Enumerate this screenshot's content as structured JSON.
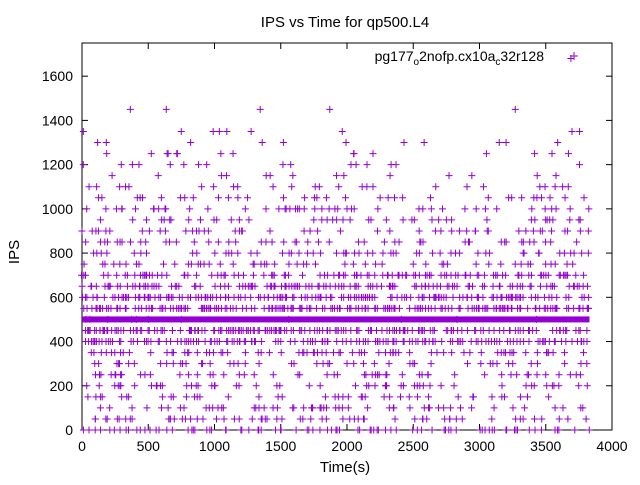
{
  "chart_data": {
    "type": "scatter",
    "title": "IPS vs Time for qp500.L4",
    "xlabel": "Time(s)",
    "ylabel": "IPS",
    "xlim": [
      0,
      4000
    ],
    "ylim": [
      0,
      1750
    ],
    "xticks": [
      0,
      500,
      1000,
      1500,
      2000,
      2500,
      3000,
      3500,
      4000
    ],
    "yticks": [
      0,
      200,
      400,
      600,
      800,
      1000,
      1200,
      1400,
      1600
    ],
    "grid": false,
    "legend_position": "top-right",
    "marker_color": "#9400d3",
    "series": [
      {
        "name": {
          "part1": "pg177",
          "sub1": "o",
          "part2": "2nofp.cx10a",
          "sub2": "c",
          "part3": "32r128"
        },
        "x_range": [
          0,
          3830
        ],
        "band_ips": [
          0,
          50,
          100,
          150,
          200,
          250,
          300,
          350,
          400,
          450,
          500,
          550,
          600,
          650,
          700,
          750,
          800,
          850,
          900,
          950,
          1000,
          1050,
          1100,
          1150,
          1200,
          1250,
          1300,
          1350,
          1450
        ],
        "baseline_ips": 500,
        "points": [
          [
            30,
            500
          ],
          [
            45,
            450
          ],
          [
            60,
            500
          ],
          [
            75,
            550
          ],
          [
            90,
            350
          ],
          [
            100,
            50
          ],
          [
            105,
            150
          ],
          [
            110,
            400
          ],
          [
            115,
            600
          ],
          [
            118,
            1300
          ],
          [
            125,
            1050
          ],
          [
            130,
            200
          ],
          [
            140,
            850
          ],
          [
            145,
            800
          ],
          [
            150,
            1050
          ],
          [
            165,
            450
          ],
          [
            180,
            50
          ],
          [
            195,
            500
          ],
          [
            205,
            650
          ],
          [
            210,
            900
          ],
          [
            220,
            250
          ],
          [
            230,
            400
          ],
          [
            240,
            750
          ],
          [
            250,
            250
          ],
          [
            260,
            1000
          ],
          [
            280,
            50
          ],
          [
            300,
            1000
          ],
          [
            330,
            50
          ],
          [
            365,
            1450
          ],
          [
            375,
            500
          ],
          [
            380,
            1200
          ],
          [
            395,
            300
          ],
          [
            410,
            500
          ],
          [
            430,
            1200
          ],
          [
            440,
            450
          ],
          [
            450,
            550
          ],
          [
            460,
            700
          ],
          [
            470,
            600
          ],
          [
            480,
            650
          ],
          [
            500,
            500
          ],
          [
            520,
            400
          ],
          [
            530,
            700
          ],
          [
            540,
            1000
          ],
          [
            560,
            650
          ],
          [
            575,
            400
          ],
          [
            590,
            900
          ],
          [
            600,
            100
          ],
          [
            610,
            550
          ],
          [
            620,
            950
          ],
          [
            640,
            700
          ],
          [
            650,
            1250
          ],
          [
            665,
            50
          ],
          [
            680,
            350
          ],
          [
            700,
            750
          ],
          [
            720,
            1250
          ],
          [
            735,
            600
          ],
          [
            750,
            500
          ],
          [
            770,
            100
          ],
          [
            790,
            200
          ],
          [
            810,
            450
          ],
          [
            820,
            1300
          ],
          [
            840,
            1050
          ],
          [
            850,
            650
          ],
          [
            870,
            50
          ],
          [
            880,
            1200
          ],
          [
            895,
            750
          ],
          [
            910,
            300
          ],
          [
            925,
            550
          ],
          [
            940,
            350
          ],
          [
            950,
            1000
          ],
          [
            970,
            600
          ],
          [
            990,
            1350
          ],
          [
            1000,
            200
          ],
          [
            1015,
            50
          ],
          [
            1030,
            1050
          ],
          [
            1050,
            700
          ],
          [
            1070,
            250
          ],
          [
            1085,
            600
          ],
          [
            1100,
            400
          ],
          [
            1120,
            550
          ],
          [
            1140,
            1250
          ],
          [
            1160,
            850
          ],
          [
            1175,
            1100
          ],
          [
            1190,
            450
          ],
          [
            1210,
            900
          ],
          [
            1225,
            250
          ],
          [
            1240,
            550
          ],
          [
            1260,
            950
          ],
          [
            1280,
            650
          ],
          [
            1300,
            100
          ],
          [
            1315,
            200
          ],
          [
            1330,
            350
          ],
          [
            1345,
            1450
          ],
          [
            1360,
            1300
          ],
          [
            1375,
            550
          ],
          [
            1390,
            1150
          ],
          [
            1405,
            600
          ],
          [
            1420,
            1150
          ],
          [
            1440,
            700
          ],
          [
            1460,
            450
          ],
          [
            1480,
            150
          ],
          [
            1500,
            400
          ],
          [
            1520,
            1300
          ],
          [
            1540,
            650
          ],
          [
            1560,
            500
          ],
          [
            1580,
            800
          ],
          [
            1600,
            300
          ],
          [
            1620,
            850
          ],
          [
            1640,
            1000
          ],
          [
            1660,
            550
          ],
          [
            1680,
            1050
          ],
          [
            1700,
            600
          ],
          [
            1720,
            450
          ],
          [
            1740,
            100
          ],
          [
            1760,
            1100
          ],
          [
            1775,
            450
          ],
          [
            1790,
            650
          ],
          [
            1810,
            950
          ],
          [
            1830,
            700
          ],
          [
            1850,
            250
          ],
          [
            1870,
            1450
          ],
          [
            1890,
            550
          ],
          [
            1910,
            150
          ],
          [
            1930,
            1000
          ],
          [
            1950,
            350
          ],
          [
            1970,
            950
          ],
          [
            1990,
            800
          ],
          [
            2010,
            100
          ],
          [
            2030,
            1200
          ],
          [
            2050,
            1250
          ],
          [
            2070,
            600
          ],
          [
            2090,
            450
          ],
          [
            2110,
            350
          ],
          [
            2130,
            50
          ],
          [
            2150,
            1100
          ],
          [
            2170,
            600
          ],
          [
            2190,
            250
          ],
          [
            2210,
            550
          ],
          [
            2230,
            900
          ],
          [
            2250,
            1050
          ],
          [
            2270,
            700
          ],
          [
            2290,
            200
          ],
          [
            2310,
            400
          ],
          [
            2330,
            650
          ],
          [
            2350,
            100
          ],
          [
            2370,
            1200
          ],
          [
            2390,
            350
          ],
          [
            2410,
            500
          ],
          [
            2430,
            1300
          ],
          [
            2450,
            700
          ],
          [
            2470,
            150
          ],
          [
            2490,
            950
          ],
          [
            2510,
            300
          ],
          [
            2530,
            550
          ],
          [
            2550,
            850
          ],
          [
            2570,
            50
          ],
          [
            2590,
            650
          ],
          [
            2610,
            250
          ],
          [
            2630,
            1050
          ],
          [
            2650,
            400
          ],
          [
            2670,
            1100
          ],
          [
            2690,
            600
          ],
          [
            2710,
            200
          ],
          [
            2730,
            750
          ],
          [
            2750,
            950
          ],
          [
            2770,
            1150
          ],
          [
            2790,
            350
          ],
          [
            2810,
            650
          ],
          [
            2830,
            500
          ],
          [
            2850,
            800
          ],
          [
            2870,
            50
          ],
          [
            2890,
            1000
          ],
          [
            2910,
            450
          ],
          [
            2930,
            700
          ],
          [
            2950,
            150
          ],
          [
            2970,
            900
          ],
          [
            2990,
            600
          ],
          [
            3010,
            300
          ],
          [
            3030,
            1100
          ],
          [
            3050,
            550
          ],
          [
            3070,
            750
          ],
          [
            3090,
            400
          ],
          [
            3110,
            100
          ],
          [
            3130,
            1000
          ],
          [
            3150,
            650
          ],
          [
            3170,
            200
          ],
          [
            3190,
            850
          ],
          [
            3210,
            550
          ],
          [
            3230,
            350
          ],
          [
            3250,
            600
          ],
          [
            3270,
            1450
          ],
          [
            3290,
            700
          ],
          [
            3310,
            150
          ],
          [
            3330,
            450
          ],
          [
            3350,
            900
          ],
          [
            3370,
            250
          ],
          [
            3390,
            650
          ],
          [
            3410,
            1050
          ],
          [
            3430,
            500
          ],
          [
            3450,
            800
          ],
          [
            3470,
            50
          ],
          [
            3490,
            600
          ],
          [
            3510,
            350
          ],
          [
            3530,
            950
          ],
          [
            3550,
            200
          ],
          [
            3570,
            550
          ],
          [
            3590,
            1300
          ],
          [
            3610,
            700
          ],
          [
            3630,
            100
          ],
          [
            3650,
            450
          ],
          [
            3670,
            1100
          ],
          [
            3690,
            1680
          ],
          [
            3710,
            650
          ],
          [
            3730,
            250
          ],
          [
            3750,
            950
          ],
          [
            3770,
            400
          ],
          [
            3790,
            600
          ],
          [
            3810,
            300
          ],
          [
            3820,
            550
          ],
          [
            3825,
            1000
          ]
        ]
      }
    ]
  }
}
